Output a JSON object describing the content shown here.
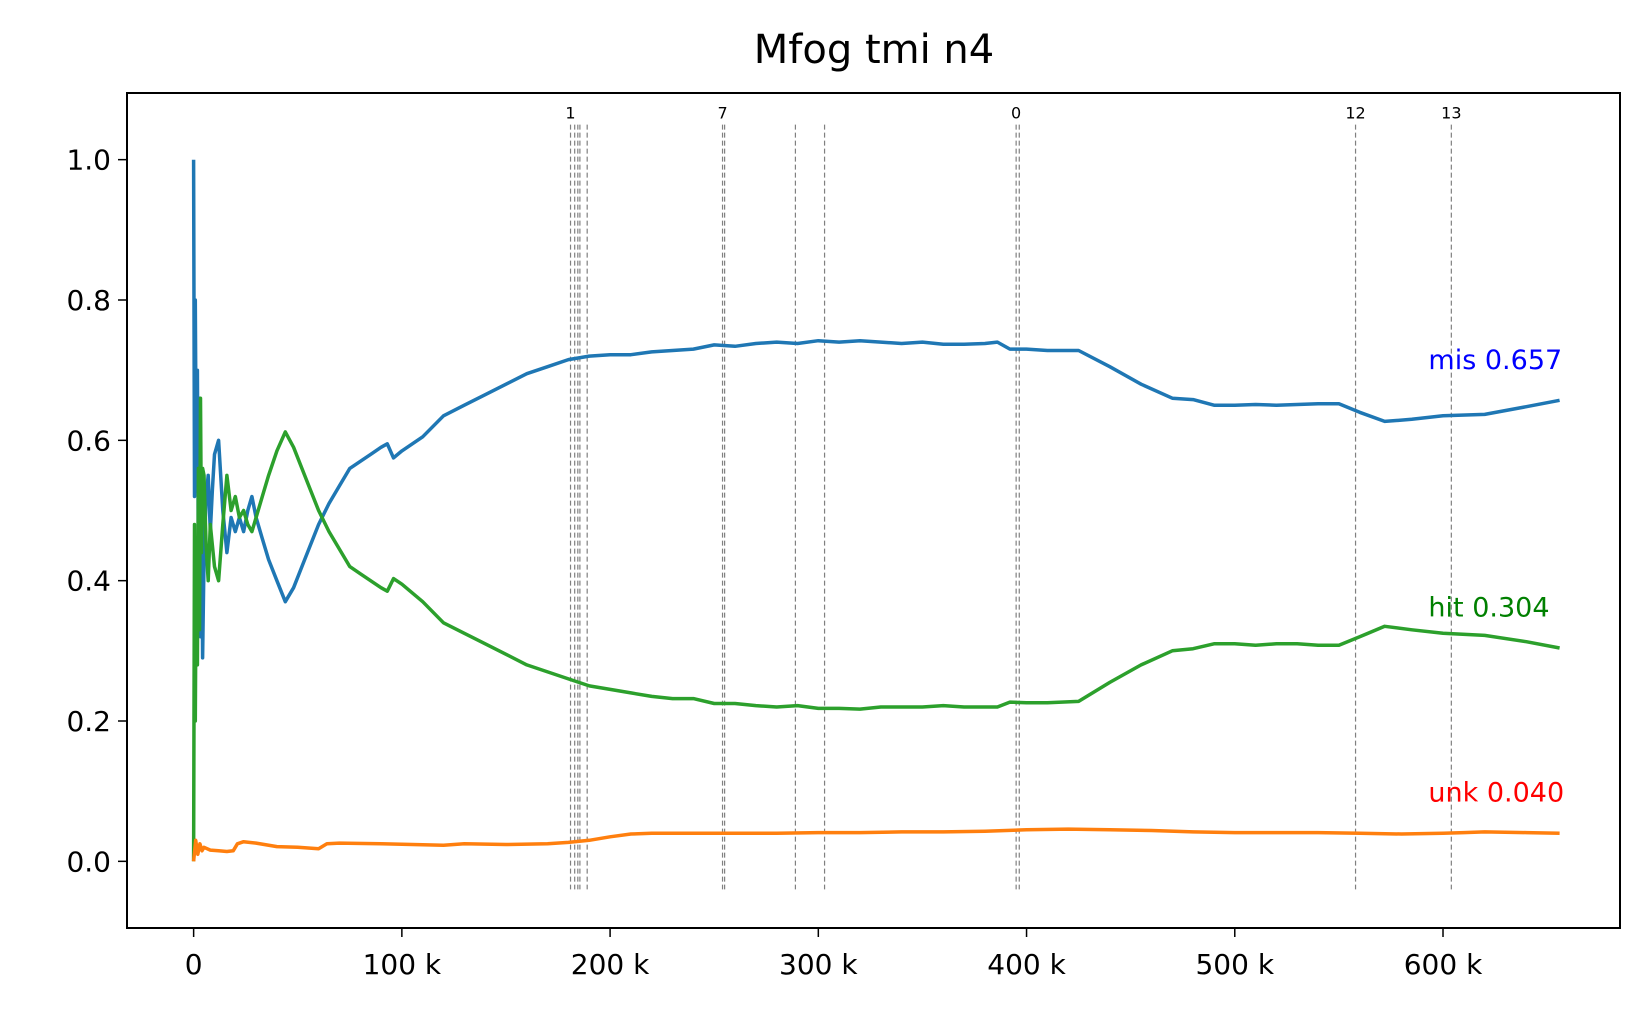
{
  "chart_data": {
    "type": "line",
    "title": "Mfog tmi n4",
    "xlabel": "",
    "ylabel": "",
    "xlim": [
      -32000,
      685000
    ],
    "ylim": [
      -0.095,
      1.095
    ],
    "xticks": [
      {
        "value": 0,
        "label": "0"
      },
      {
        "value": 100000,
        "label": "100 k"
      },
      {
        "value": 200000,
        "label": "200 k"
      },
      {
        "value": 300000,
        "label": "300 k"
      },
      {
        "value": 400000,
        "label": "400 k"
      },
      {
        "value": 500000,
        "label": "500 k"
      },
      {
        "value": 600000,
        "label": "600 k"
      }
    ],
    "yticks": [
      {
        "value": 0.0,
        "label": "0.0"
      },
      {
        "value": 0.2,
        "label": "0.2"
      },
      {
        "value": 0.4,
        "label": "0.4"
      },
      {
        "value": 0.6,
        "label": "0.6"
      },
      {
        "value": 0.8,
        "label": "0.8"
      },
      {
        "value": 1.0,
        "label": "1.0"
      }
    ],
    "grid": false,
    "vlines": [
      {
        "x": 181000,
        "label": "1"
      },
      {
        "x": 183000,
        "label": ""
      },
      {
        "x": 184500,
        "label": ""
      },
      {
        "x": 185500,
        "label": ""
      },
      {
        "x": 189000,
        "label": ""
      },
      {
        "x": 254000,
        "label": "7"
      },
      {
        "x": 255000,
        "label": ""
      },
      {
        "x": 289000,
        "label": ""
      },
      {
        "x": 303000,
        "label": ""
      },
      {
        "x": 395000,
        "label": "0"
      },
      {
        "x": 396500,
        "label": ""
      },
      {
        "x": 558000,
        "label": "12"
      },
      {
        "x": 604000,
        "label": "13"
      }
    ],
    "series": [
      {
        "name": "mis",
        "color": "#1f77b4",
        "label_color": "#0000ff",
        "end_label": "mis 0.657",
        "points": [
          [
            0,
            1.0
          ],
          [
            400,
            0.52
          ],
          [
            800,
            0.8
          ],
          [
            1300,
            0.55
          ],
          [
            1800,
            0.7
          ],
          [
            2300,
            0.42
          ],
          [
            2800,
            0.66
          ],
          [
            3300,
            0.32
          ],
          [
            3800,
            0.55
          ],
          [
            4300,
            0.29
          ],
          [
            5000,
            0.43
          ],
          [
            6000,
            0.52
          ],
          [
            7000,
            0.55
          ],
          [
            8000,
            0.47
          ],
          [
            9000,
            0.53
          ],
          [
            10000,
            0.58
          ],
          [
            12000,
            0.6
          ],
          [
            14000,
            0.5
          ],
          [
            16000,
            0.44
          ],
          [
            18000,
            0.49
          ],
          [
            20000,
            0.47
          ],
          [
            22000,
            0.49
          ],
          [
            24000,
            0.47
          ],
          [
            26000,
            0.5
          ],
          [
            28000,
            0.52
          ],
          [
            30000,
            0.49
          ],
          [
            33000,
            0.46
          ],
          [
            36000,
            0.43
          ],
          [
            40000,
            0.4
          ],
          [
            44000,
            0.37
          ],
          [
            48000,
            0.39
          ],
          [
            52000,
            0.42
          ],
          [
            56000,
            0.45
          ],
          [
            60000,
            0.48
          ],
          [
            65000,
            0.51
          ],
          [
            70000,
            0.535
          ],
          [
            75000,
            0.56
          ],
          [
            80000,
            0.57
          ],
          [
            85000,
            0.58
          ],
          [
            90000,
            0.59
          ],
          [
            93000,
            0.595
          ],
          [
            96000,
            0.575
          ],
          [
            100000,
            0.585
          ],
          [
            110000,
            0.605
          ],
          [
            120000,
            0.635
          ],
          [
            130000,
            0.65
          ],
          [
            140000,
            0.665
          ],
          [
            150000,
            0.68
          ],
          [
            160000,
            0.695
          ],
          [
            170000,
            0.705
          ],
          [
            180000,
            0.715
          ],
          [
            190000,
            0.72
          ],
          [
            200000,
            0.722
          ],
          [
            210000,
            0.722
          ],
          [
            220000,
            0.726
          ],
          [
            230000,
            0.728
          ],
          [
            240000,
            0.73
          ],
          [
            250000,
            0.736
          ],
          [
            260000,
            0.734
          ],
          [
            270000,
            0.738
          ],
          [
            280000,
            0.74
          ],
          [
            290000,
            0.738
          ],
          [
            300000,
            0.742
          ],
          [
            310000,
            0.74
          ],
          [
            320000,
            0.742
          ],
          [
            330000,
            0.74
          ],
          [
            340000,
            0.738
          ],
          [
            350000,
            0.74
          ],
          [
            360000,
            0.737
          ],
          [
            370000,
            0.737
          ],
          [
            380000,
            0.738
          ],
          [
            386000,
            0.74
          ],
          [
            392000,
            0.73
          ],
          [
            400000,
            0.73
          ],
          [
            410000,
            0.728
          ],
          [
            425000,
            0.728
          ],
          [
            440000,
            0.705
          ],
          [
            455000,
            0.68
          ],
          [
            470000,
            0.66
          ],
          [
            480000,
            0.658
          ],
          [
            490000,
            0.65
          ],
          [
            500000,
            0.65
          ],
          [
            510000,
            0.651
          ],
          [
            520000,
            0.65
          ],
          [
            530000,
            0.651
          ],
          [
            540000,
            0.652
          ],
          [
            550000,
            0.652
          ],
          [
            560000,
            0.64
          ],
          [
            572000,
            0.627
          ],
          [
            585000,
            0.63
          ],
          [
            600000,
            0.635
          ],
          [
            620000,
            0.637
          ],
          [
            640000,
            0.648
          ],
          [
            656000,
            0.657
          ]
        ]
      },
      {
        "name": "hit",
        "color": "#2ca02c",
        "label_color": "#008000",
        "end_label": "hit 0.304",
        "points": [
          [
            0,
            0.0
          ],
          [
            400,
            0.48
          ],
          [
            800,
            0.2
          ],
          [
            1300,
            0.45
          ],
          [
            1800,
            0.28
          ],
          [
            2300,
            0.56
          ],
          [
            2800,
            0.33
          ],
          [
            3300,
            0.66
          ],
          [
            3800,
            0.44
          ],
          [
            4300,
            0.56
          ],
          [
            5000,
            0.55
          ],
          [
            6000,
            0.45
          ],
          [
            7000,
            0.4
          ],
          [
            8000,
            0.48
          ],
          [
            9000,
            0.45
          ],
          [
            10000,
            0.42
          ],
          [
            12000,
            0.4
          ],
          [
            14000,
            0.48
          ],
          [
            16000,
            0.55
          ],
          [
            18000,
            0.5
          ],
          [
            20000,
            0.52
          ],
          [
            22000,
            0.49
          ],
          [
            24000,
            0.5
          ],
          [
            26000,
            0.48
          ],
          [
            28000,
            0.47
          ],
          [
            30000,
            0.49
          ],
          [
            33000,
            0.52
          ],
          [
            36000,
            0.55
          ],
          [
            40000,
            0.585
          ],
          [
            44000,
            0.612
          ],
          [
            48000,
            0.59
          ],
          [
            52000,
            0.56
          ],
          [
            56000,
            0.53
          ],
          [
            60000,
            0.5
          ],
          [
            65000,
            0.47
          ],
          [
            70000,
            0.445
          ],
          [
            75000,
            0.42
          ],
          [
            80000,
            0.41
          ],
          [
            85000,
            0.4
          ],
          [
            90000,
            0.39
          ],
          [
            93000,
            0.385
          ],
          [
            96000,
            0.403
          ],
          [
            100000,
            0.395
          ],
          [
            110000,
            0.37
          ],
          [
            120000,
            0.34
          ],
          [
            130000,
            0.325
          ],
          [
            140000,
            0.31
          ],
          [
            150000,
            0.295
          ],
          [
            160000,
            0.28
          ],
          [
            170000,
            0.27
          ],
          [
            180000,
            0.26
          ],
          [
            190000,
            0.25
          ],
          [
            200000,
            0.245
          ],
          [
            210000,
            0.24
          ],
          [
            220000,
            0.235
          ],
          [
            230000,
            0.232
          ],
          [
            240000,
            0.232
          ],
          [
            250000,
            0.225
          ],
          [
            260000,
            0.225
          ],
          [
            270000,
            0.222
          ],
          [
            280000,
            0.22
          ],
          [
            290000,
            0.222
          ],
          [
            300000,
            0.218
          ],
          [
            310000,
            0.218
          ],
          [
            320000,
            0.217
          ],
          [
            330000,
            0.22
          ],
          [
            340000,
            0.22
          ],
          [
            350000,
            0.22
          ],
          [
            360000,
            0.222
          ],
          [
            370000,
            0.22
          ],
          [
            380000,
            0.22
          ],
          [
            386000,
            0.22
          ],
          [
            392000,
            0.227
          ],
          [
            400000,
            0.226
          ],
          [
            410000,
            0.226
          ],
          [
            425000,
            0.228
          ],
          [
            440000,
            0.255
          ],
          [
            455000,
            0.28
          ],
          [
            470000,
            0.3
          ],
          [
            480000,
            0.303
          ],
          [
            490000,
            0.31
          ],
          [
            500000,
            0.31
          ],
          [
            510000,
            0.308
          ],
          [
            520000,
            0.31
          ],
          [
            530000,
            0.31
          ],
          [
            540000,
            0.308
          ],
          [
            550000,
            0.308
          ],
          [
            560000,
            0.32
          ],
          [
            572000,
            0.335
          ],
          [
            585000,
            0.33
          ],
          [
            600000,
            0.325
          ],
          [
            620000,
            0.322
          ],
          [
            640000,
            0.313
          ],
          [
            656000,
            0.304
          ]
        ]
      },
      {
        "name": "unk",
        "color": "#ff7f0e",
        "label_color": "#ff0000",
        "end_label": "unk 0.040",
        "points": [
          [
            0,
            0.0
          ],
          [
            1000,
            0.03
          ],
          [
            2000,
            0.01
          ],
          [
            3000,
            0.025
          ],
          [
            4000,
            0.015
          ],
          [
            5000,
            0.02
          ],
          [
            8000,
            0.016
          ],
          [
            12000,
            0.015
          ],
          [
            16000,
            0.014
          ],
          [
            19000,
            0.015
          ],
          [
            21000,
            0.025
          ],
          [
            24000,
            0.028
          ],
          [
            30000,
            0.026
          ],
          [
            40000,
            0.021
          ],
          [
            50000,
            0.02
          ],
          [
            60000,
            0.018
          ],
          [
            64000,
            0.025
          ],
          [
            70000,
            0.026
          ],
          [
            90000,
            0.025
          ],
          [
            120000,
            0.023
          ],
          [
            130000,
            0.025
          ],
          [
            150000,
            0.024
          ],
          [
            170000,
            0.025
          ],
          [
            180000,
            0.027
          ],
          [
            190000,
            0.03
          ],
          [
            200000,
            0.035
          ],
          [
            210000,
            0.039
          ],
          [
            220000,
            0.04
          ],
          [
            240000,
            0.04
          ],
          [
            260000,
            0.04
          ],
          [
            280000,
            0.04
          ],
          [
            300000,
            0.041
          ],
          [
            320000,
            0.041
          ],
          [
            340000,
            0.042
          ],
          [
            360000,
            0.042
          ],
          [
            380000,
            0.043
          ],
          [
            400000,
            0.045
          ],
          [
            420000,
            0.046
          ],
          [
            440000,
            0.045
          ],
          [
            460000,
            0.044
          ],
          [
            480000,
            0.042
          ],
          [
            500000,
            0.041
          ],
          [
            520000,
            0.041
          ],
          [
            540000,
            0.041
          ],
          [
            560000,
            0.04
          ],
          [
            580000,
            0.039
          ],
          [
            600000,
            0.04
          ],
          [
            610000,
            0.041
          ],
          [
            620000,
            0.042
          ],
          [
            640000,
            0.041
          ],
          [
            656000,
            0.04
          ]
        ]
      }
    ]
  }
}
